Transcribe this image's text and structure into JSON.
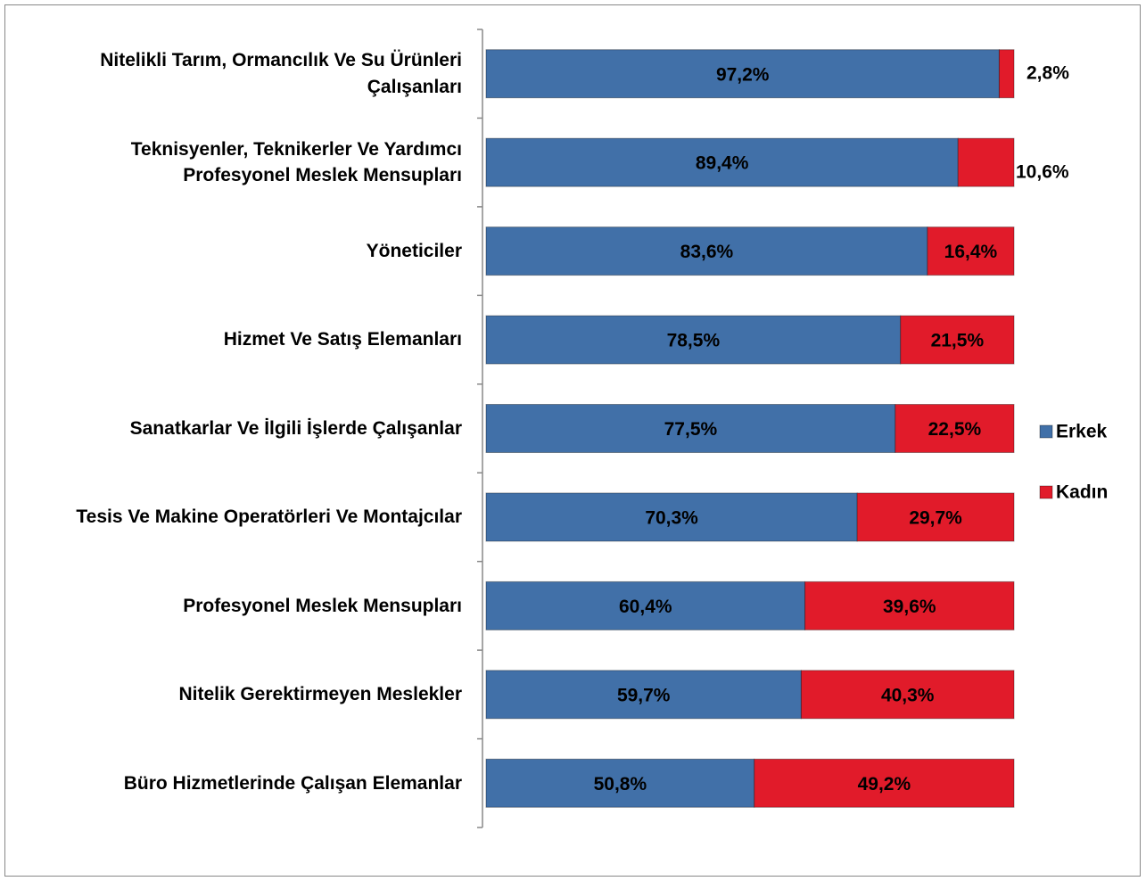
{
  "chart_data": {
    "type": "stacked_bar_horizontal",
    "categories": [
      "Nitelikli Tarım, Ormancılık Ve Su Ürünleri Çalışanları",
      "Teknisyenler, Teknikerler Ve Yardımcı Profesyonel Meslek Mensupları",
      "Yöneticiler",
      "Hizmet Ve Satış Elemanları",
      "Sanatkarlar Ve İlgili İşlerde Çalışanlar",
      "Tesis Ve Makine Operatörleri Ve Montajcılar",
      "Profesyonel Meslek Mensupları",
      "Nitelik Gerektirmeyen Meslekler",
      "Büro Hizmetlerinde Çalışan Elemanlar"
    ],
    "series": [
      {
        "name": "Erkek",
        "color": "#4170a8",
        "values": [
          97.2,
          89.4,
          83.6,
          78.5,
          77.5,
          70.3,
          60.4,
          59.7,
          50.8
        ],
        "value_labels": [
          "97,2%",
          "89,4%",
          "83,6%",
          "78,5%",
          "77,5%",
          "70,3%",
          "60,4%",
          "59,7%",
          "50,8%"
        ]
      },
      {
        "name": "Kadın",
        "color": "#e11b2a",
        "values": [
          2.8,
          10.6,
          16.4,
          21.5,
          22.5,
          29.7,
          39.6,
          40.3,
          49.2
        ],
        "value_labels": [
          "2,8%",
          "10,6%",
          "16,4%",
          "21,5%",
          "22,5%",
          "29,7%",
          "39,6%",
          "40,3%",
          "49,2%"
        ]
      }
    ],
    "xlim": [
      0,
      100
    ],
    "legend": "right"
  }
}
